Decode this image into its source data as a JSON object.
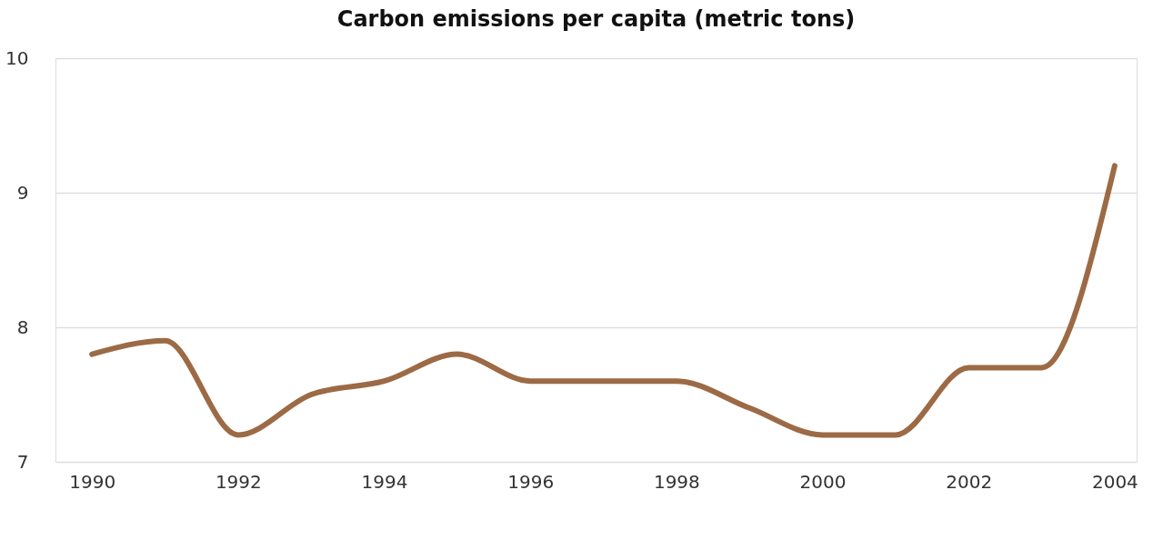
{
  "chart_data": {
    "type": "line",
    "title": "Carbon emissions per capita (metric tons)",
    "x": [
      1990,
      1991,
      1992,
      1993,
      1994,
      1995,
      1996,
      1997,
      1998,
      1999,
      2000,
      2001,
      2002,
      2003,
      2004
    ],
    "series": [
      {
        "color": "#9c6a45",
        "values": [
          7.8,
          7.9,
          7.2,
          7.5,
          7.6,
          7.8,
          7.6,
          7.6,
          7.6,
          7.4,
          7.2,
          7.2,
          7.7,
          7.7,
          9.2
        ]
      }
    ],
    "xlim": [
      1989.5,
      2004.3
    ],
    "xticks": [
      1990,
      1992,
      1994,
      1996,
      1998,
      2000,
      2002,
      2004
    ],
    "ylim": [
      7,
      10
    ],
    "yticks": [
      7,
      8,
      9,
      10
    ],
    "grid": "y",
    "marker": "none",
    "line_style": "solid"
  }
}
